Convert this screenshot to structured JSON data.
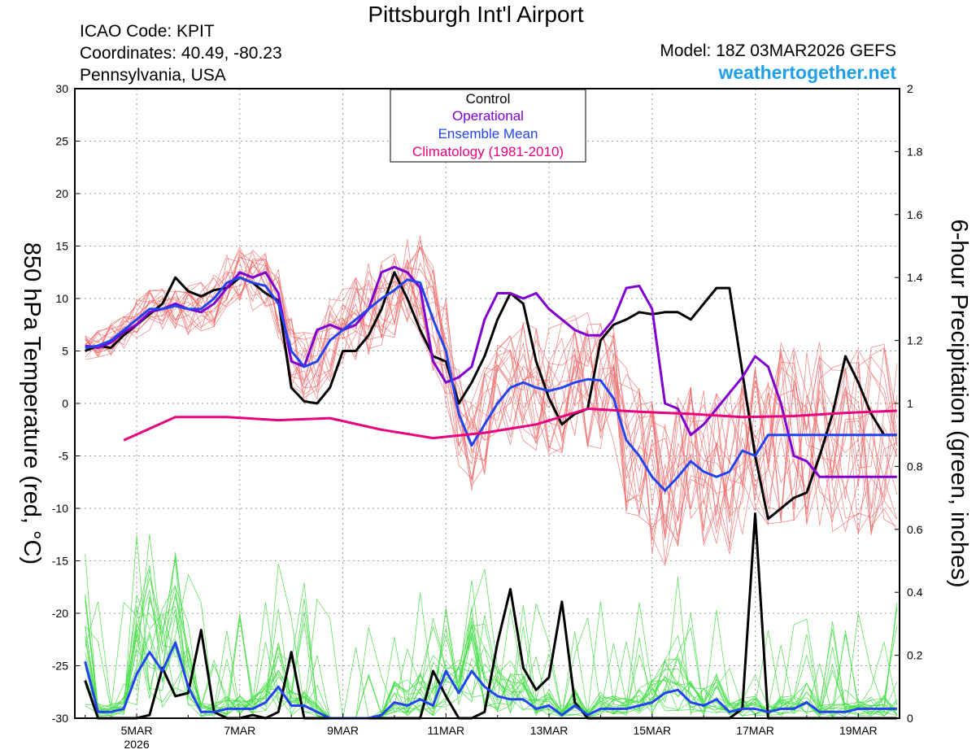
{
  "header": {
    "title": "Pittsburgh Int'l Airport",
    "icao": "ICAO Code: KPIT",
    "coords": "Coordinates: 40.49, -80.23",
    "region": "Pennsylvania, USA",
    "model": "Model: 18Z 03MAR2026 GEFS",
    "brand": "weathertogether.net"
  },
  "colors": {
    "control": "#000000",
    "operational": "#8000d0",
    "ensemble_mean": "#2244ee",
    "climatology": "#e8007f",
    "members_temp": "#ee6666",
    "members_precip": "#44dd44",
    "brand": "#1e9fe8"
  },
  "chart_data": {
    "type": "line",
    "ylabel_left": "850 hPa Temperature (red, °C)",
    "ylabel_right": "6-hour Precipitation (green, inches)",
    "x_unit": "days since 03MAR2026 00Z",
    "xlim": [
      0.8,
      16.8
    ],
    "ylim_left": [
      -30,
      30
    ],
    "ylim_right": [
      0,
      2
    ],
    "y_ticks_left": [
      -30,
      -25,
      -20,
      -15,
      -10,
      -5,
      0,
      5,
      10,
      15,
      20,
      25,
      30
    ],
    "y_ticks_right": [
      0,
      0.2,
      0.4,
      0.6,
      0.8,
      1,
      1.2,
      1.4,
      1.6,
      1.8,
      2
    ],
    "x_ticks": [
      {
        "x": 2,
        "label": "5MAR",
        "sub": "2026"
      },
      {
        "x": 4,
        "label": "7MAR",
        "sub": ""
      },
      {
        "x": 6,
        "label": "9MAR",
        "sub": ""
      },
      {
        "x": 8,
        "label": "11MAR",
        "sub": ""
      },
      {
        "x": 10,
        "label": "13MAR",
        "sub": ""
      },
      {
        "x": 12,
        "label": "15MAR",
        "sub": ""
      },
      {
        "x": 14,
        "label": "17MAR",
        "sub": ""
      },
      {
        "x": 16,
        "label": "19MAR",
        "sub": ""
      }
    ],
    "grid": true,
    "legend": {
      "position": "top-center",
      "entries": [
        "Control",
        "Operational",
        "Ensemble Mean",
        "Climatology (1981-2010)"
      ]
    },
    "temp_series": [
      {
        "name": "Control",
        "x": [
          0.75,
          1.0,
          1.25,
          1.5,
          1.75,
          2.0,
          2.25,
          2.5,
          2.75,
          3.0,
          3.25,
          3.5,
          3.75,
          4.0,
          4.25,
          4.5,
          4.75,
          5.0,
          5.25,
          5.5,
          5.75,
          6.0,
          6.25,
          6.5,
          6.75,
          7.0,
          7.25,
          7.5,
          7.75,
          8.0,
          8.25,
          8.5,
          8.75,
          9.0,
          9.25,
          9.5,
          9.75,
          10.0,
          10.25,
          10.5,
          10.75,
          11.0,
          11.25,
          11.5,
          11.75,
          12.0,
          12.25,
          12.5,
          12.75,
          13.0,
          13.25,
          13.5,
          13.75,
          14.0,
          14.25,
          14.5,
          14.75,
          15.0,
          15.25,
          15.5,
          15.75,
          16.0,
          16.25,
          16.5,
          16.75
        ],
        "y": [
          5.5,
          5.0,
          5.5,
          5.3,
          6.5,
          7.5,
          8.5,
          9.5,
          12.0,
          10.7,
          10.2,
          10.8,
          11.0,
          12.0,
          11.5,
          10.5,
          9.8,
          1.5,
          0.2,
          0.0,
          1.5,
          5.0,
          5.0,
          6.5,
          9.0,
          12.5,
          10.0,
          7.0,
          4.5,
          4.0,
          0.0,
          2.0,
          4.5,
          8.0,
          10.5,
          9.5,
          4.0,
          0.5,
          -2.0,
          -1.0,
          -0.5,
          6.0,
          7.5,
          8.0,
          8.7,
          8.5,
          8.7,
          8.7,
          8.0,
          9.5,
          11.0,
          11.0,
          3.0,
          -5.0,
          -11.0,
          -10.0,
          -9.0,
          -8.5,
          -5.0,
          -1.0,
          4.5,
          2.0,
          -1.0,
          -3.0,
          -3.0
        ]
      },
      {
        "name": "Operational",
        "x": [
          0.75,
          1.0,
          1.25,
          1.5,
          1.75,
          2.0,
          2.25,
          2.5,
          2.75,
          3.0,
          3.25,
          3.5,
          3.75,
          4.0,
          4.25,
          4.5,
          4.75,
          5.0,
          5.25,
          5.5,
          5.75,
          6.0,
          6.25,
          6.5,
          6.75,
          7.0,
          7.25,
          7.5,
          7.75,
          8.0,
          8.25,
          8.5,
          8.75,
          9.0,
          9.25,
          9.5,
          9.75,
          10.0,
          10.25,
          10.5,
          10.75,
          11.0,
          11.25,
          11.5,
          11.75,
          12.0,
          12.25,
          12.5,
          12.75,
          13.0,
          13.25,
          13.5,
          13.75,
          14.0,
          14.25,
          14.5,
          14.75,
          15.0,
          15.25,
          15.5,
          15.75,
          16.0,
          16.25,
          16.5,
          16.75
        ],
        "y": [
          5.5,
          5.5,
          5.3,
          5.8,
          6.8,
          7.5,
          8.7,
          9.0,
          9.5,
          9.0,
          8.7,
          9.5,
          11.0,
          12.5,
          12.0,
          12.5,
          10.5,
          4.0,
          3.5,
          7.0,
          7.5,
          7.0,
          7.5,
          9.0,
          12.5,
          13.0,
          12.5,
          11.0,
          4.0,
          2.0,
          2.5,
          3.5,
          8.0,
          10.5,
          10.5,
          10.0,
          10.5,
          9.0,
          8.0,
          7.0,
          6.5,
          6.5,
          8.0,
          11.0,
          11.2,
          9.0,
          0.0,
          -0.5,
          -3.0,
          -2.0,
          -0.5,
          1.0,
          2.5,
          4.5,
          3.5,
          0.0,
          -5.0,
          -5.5,
          -7.0,
          -7.0,
          -7.0,
          -7.0,
          -7.0,
          -7.0,
          -7.0
        ]
      },
      {
        "name": "Ensemble Mean",
        "x": [
          0.75,
          1.0,
          1.25,
          1.5,
          1.75,
          2.0,
          2.25,
          2.5,
          2.75,
          3.0,
          3.25,
          3.5,
          3.75,
          4.0,
          4.25,
          4.5,
          4.75,
          5.0,
          5.25,
          5.5,
          5.75,
          6.0,
          6.25,
          6.5,
          6.75,
          7.0,
          7.25,
          7.5,
          7.75,
          8.0,
          8.25,
          8.5,
          8.75,
          9.0,
          9.25,
          9.5,
          9.75,
          10.0,
          10.25,
          10.5,
          10.75,
          11.0,
          11.25,
          11.5,
          11.75,
          12.0,
          12.25,
          12.5,
          12.75,
          13.0,
          13.25,
          13.5,
          13.75,
          14.0,
          14.25,
          14.5,
          14.75,
          15.0,
          15.25,
          15.5,
          15.75,
          16.0,
          16.25,
          16.5,
          16.75
        ],
        "y": [
          5.5,
          5.3,
          5.5,
          6.0,
          7.0,
          8.0,
          9.0,
          9.0,
          9.3,
          9.0,
          9.0,
          10.0,
          11.5,
          12.0,
          11.5,
          11.2,
          9.5,
          5.0,
          3.5,
          4.0,
          6.0,
          7.0,
          8.0,
          9.0,
          10.0,
          10.8,
          11.8,
          11.5,
          8.0,
          5.0,
          -1.0,
          -4.0,
          -2.0,
          0.0,
          1.5,
          2.0,
          1.5,
          1.2,
          1.5,
          2.0,
          2.3,
          2.2,
          0.5,
          -3.5,
          -5.0,
          -7.0,
          -8.3,
          -7.0,
          -5.5,
          -6.5,
          -7.0,
          -6.5,
          -4.5,
          -5.0,
          -3.0,
          -3.0,
          -3.0,
          -3.0,
          -3.0,
          -3.0,
          -3.0,
          -3.0,
          -3.0,
          -3.0,
          -3.0
        ]
      },
      {
        "name": "Climatology (1981-2010)",
        "x": [
          0.75,
          1.75,
          2.75,
          3.75,
          4.75,
          5.75,
          6.75,
          7.75,
          8.75,
          9.75,
          10.75,
          11.75,
          12.75,
          13.75,
          14.75,
          15.75,
          16.75
        ],
        "y": [
          -3.5,
          -3.5,
          -1.3,
          -1.3,
          -1.6,
          -1.4,
          -2.5,
          -3.3,
          -2.8,
          -2.0,
          -0.5,
          -0.8,
          -1.0,
          -1.3,
          -1.2,
          -0.9,
          -0.7
        ]
      }
    ],
    "precip_series": [
      {
        "name": "Control",
        "x": [
          0.75,
          1.0,
          1.25,
          1.5,
          1.75,
          2.0,
          2.25,
          2.5,
          2.75,
          3.0,
          3.25,
          3.5,
          3.75,
          4.0,
          4.25,
          4.5,
          4.75,
          5.0,
          5.25,
          5.5,
          5.75,
          6.0,
          6.25,
          6.5,
          6.75,
          7.0,
          7.25,
          7.5,
          7.75,
          8.0,
          8.25,
          8.5,
          8.75,
          9.0,
          9.25,
          9.5,
          9.75,
          10.0,
          10.25,
          10.5,
          10.75,
          11.0,
          11.25,
          11.5,
          11.75,
          12.0,
          12.25,
          12.5,
          12.75,
          13.0,
          13.25,
          13.5,
          13.75,
          14.0,
          14.25,
          14.5,
          14.75,
          15.0,
          15.25,
          15.5,
          15.75,
          16.0,
          16.25,
          16.5,
          16.75
        ],
        "y": [
          0.16,
          0.12,
          0.0,
          0.0,
          0.0,
          0.0,
          0.01,
          0.16,
          0.07,
          0.08,
          0.28,
          0.02,
          0.0,
          0.0,
          0.01,
          0.0,
          0.02,
          0.21,
          0.0,
          0.0,
          0.0,
          0.0,
          0.0,
          0.0,
          0.0,
          0.0,
          0.0,
          0.0,
          0.15,
          0.07,
          0.0,
          0.0,
          0.02,
          0.24,
          0.41,
          0.16,
          0.09,
          0.13,
          0.37,
          0.05,
          0.0,
          0.0,
          0.0,
          0.0,
          0.0,
          0.0,
          0.0,
          0.0,
          0.0,
          0.0,
          0.0,
          0.0,
          0.03,
          0.65,
          0.0,
          0.0,
          0.0,
          0.0,
          0.0,
          0.0,
          0.0,
          0.0,
          0.0,
          0.0,
          0.0
        ]
      },
      {
        "name": "Ensemble Mean",
        "x": [
          0.75,
          1.0,
          1.25,
          1.5,
          1.75,
          2.0,
          2.25,
          2.5,
          2.75,
          3.0,
          3.25,
          3.5,
          3.75,
          4.0,
          4.25,
          4.5,
          4.75,
          5.0,
          5.25,
          5.5,
          5.75,
          6.0,
          6.25,
          6.5,
          6.75,
          7.0,
          7.25,
          7.5,
          7.75,
          8.0,
          8.25,
          8.5,
          8.75,
          9.0,
          9.25,
          9.5,
          9.75,
          10.0,
          10.25,
          10.5,
          10.75,
          11.0,
          11.25,
          11.5,
          11.75,
          12.0,
          12.25,
          12.5,
          12.75,
          13.0,
          13.25,
          13.5,
          13.75,
          14.0,
          14.25,
          14.5,
          14.75,
          15.0,
          15.25,
          15.5,
          15.75,
          16.0,
          16.25,
          16.5,
          16.75
        ],
        "y": [
          0.32,
          0.18,
          0.02,
          0.02,
          0.03,
          0.14,
          0.21,
          0.15,
          0.24,
          0.1,
          0.02,
          0.02,
          0.03,
          0.03,
          0.03,
          0.05,
          0.1,
          0.04,
          0.04,
          0.02,
          0.0,
          0.0,
          0.0,
          0.0,
          0.01,
          0.05,
          0.04,
          0.06,
          0.04,
          0.15,
          0.08,
          0.15,
          0.1,
          0.07,
          0.06,
          0.06,
          0.03,
          0.04,
          0.01,
          0.04,
          0.01,
          0.03,
          0.03,
          0.03,
          0.04,
          0.05,
          0.08,
          0.09,
          0.05,
          0.04,
          0.06,
          0.02,
          0.03,
          0.03,
          0.02,
          0.03,
          0.03,
          0.05,
          0.02,
          0.02,
          0.02,
          0.03,
          0.03,
          0.03,
          0.03
        ]
      }
    ]
  }
}
